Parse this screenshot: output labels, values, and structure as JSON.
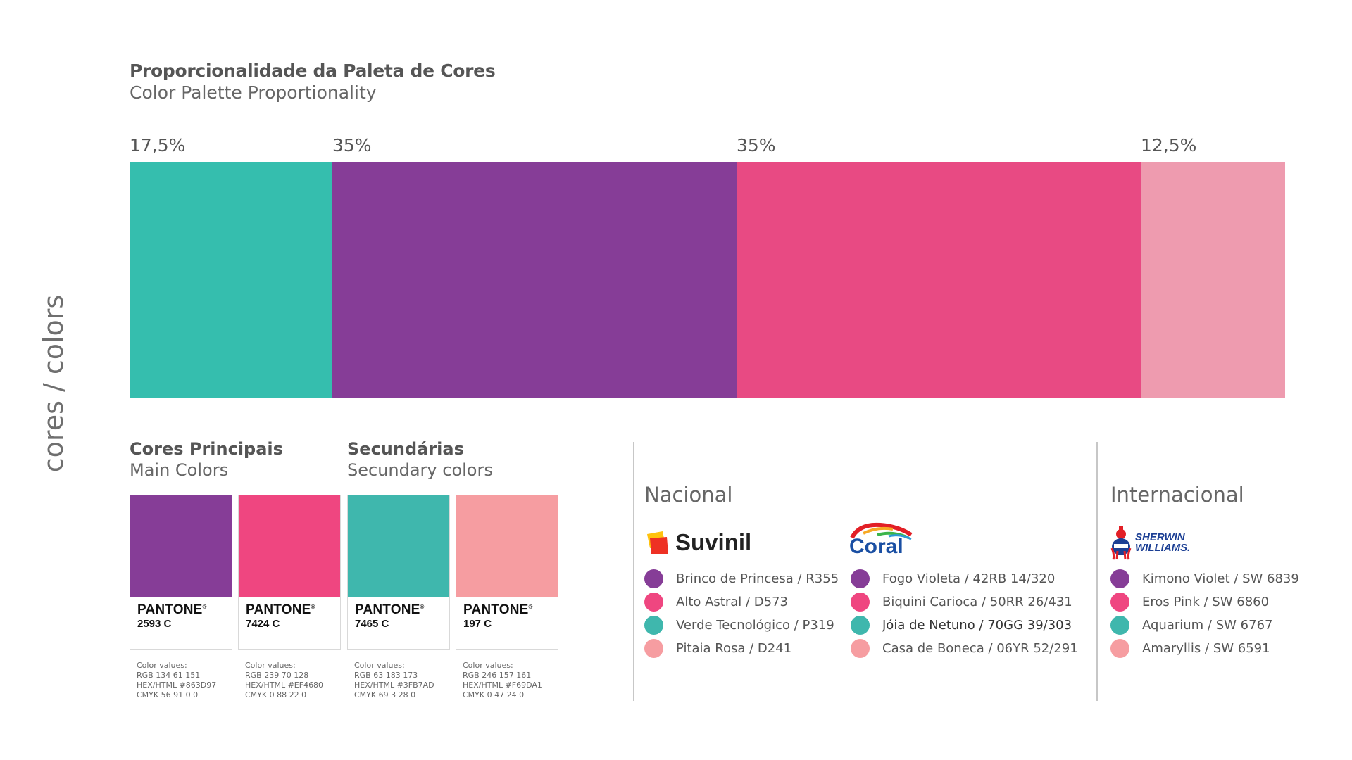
{
  "side_label": "cores / colors",
  "title": {
    "pt": "Proporcionalidade da Paleta de Cores",
    "en": "Color Palette Proportionality"
  },
  "proportions": [
    {
      "label": "17,5%",
      "value": 17.5,
      "color": "#35BEAE"
    },
    {
      "label": "35%",
      "value": 35,
      "color": "#863D97"
    },
    {
      "label": "35%",
      "value": 35,
      "color": "#E84A83"
    },
    {
      "label": "12,5%",
      "value": 12.5,
      "color": "#EE9BAF"
    }
  ],
  "main_colors": {
    "pt": "Cores Principais",
    "en": "Main Colors"
  },
  "secondary_colors": {
    "pt": "Secundárias",
    "en": "Secundary colors"
  },
  "swatches": [
    {
      "color": "#863D97",
      "brand": "PANTONE",
      "code": "2593 C",
      "cv_title": "Color values:",
      "rgb": "RGB 134 61 151",
      "hex": "HEX/HTML #863D97",
      "cmyk": "CMYK 56 91 0 0"
    },
    {
      "color": "#EF4680",
      "brand": "PANTONE",
      "code": "7424 C",
      "cv_title": "Color values:",
      "rgb": "RGB 239 70 128",
      "hex": "HEX/HTML #EF4680",
      "cmyk": "CMYK 0 88 22 0"
    },
    {
      "color": "#3FB7AD",
      "brand": "PANTONE",
      "code": "7465 C",
      "cv_title": "Color values:",
      "rgb": "RGB 63 183 173",
      "hex": "HEX/HTML #3FB7AD",
      "cmyk": "CMYK 69 3 28 0"
    },
    {
      "color": "#F69DA1",
      "brand": "PANTONE",
      "code": "197 C",
      "cv_title": "Color values:",
      "rgb": "RGB 246 157 161",
      "hex": "HEX/HTML #F69DA1",
      "cmyk": "CMYK 0 47 24 0"
    }
  ],
  "nacional": {
    "title": "Nacional",
    "brands": [
      {
        "logo": "Suvinil",
        "items": [
          {
            "color": "#863D97",
            "name": "Brinco de Princesa / R355"
          },
          {
            "color": "#EF4680",
            "name": "Alto Astral / D573"
          },
          {
            "color": "#3FB7AD",
            "name": "Verde Tecnológico / P319"
          },
          {
            "color": "#F69DA1",
            "name": "Pitaia Rosa / D241"
          }
        ]
      },
      {
        "logo": "Coral",
        "items": [
          {
            "color": "#863D97",
            "name": "Fogo Violeta / 42RB 14/320"
          },
          {
            "color": "#EF4680",
            "name": "Biquini Carioca / 50RR 26/431"
          },
          {
            "color": "#3FB7AD",
            "name": "Jóia de Netuno / 70GG 39/303"
          },
          {
            "color": "#F69DA1",
            "name": "Casa de Boneca / 06YR 52/291"
          }
        ]
      }
    ]
  },
  "internacional": {
    "title": "Internacional",
    "logo_line1": "SHERWIN",
    "logo_line2": "WILLIAMS.",
    "items": [
      {
        "color": "#863D97",
        "name": "Kimono Violet / SW 6839"
      },
      {
        "color": "#EF4680",
        "name": "Eros Pink / SW 6860"
      },
      {
        "color": "#3FB7AD",
        "name": "Aquarium / SW 6767"
      },
      {
        "color": "#F69DA1",
        "name": "Amaryllis / SW 6591"
      }
    ]
  }
}
